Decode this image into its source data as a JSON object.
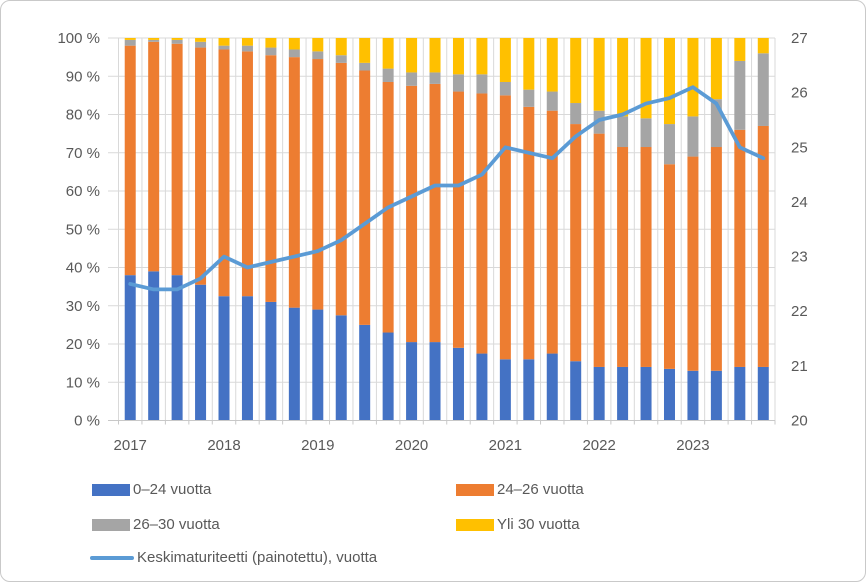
{
  "chart_data": {
    "type": "bar",
    "subtype": "100%-stacked-columns-with-line",
    "title": "",
    "x_categories": [
      "2017Q1",
      "2017Q2",
      "2017Q3",
      "2017Q4",
      "2018Q1",
      "2018Q2",
      "2018Q3",
      "2018Q4",
      "2019Q1",
      "2019Q2",
      "2019Q3",
      "2019Q4",
      "2020Q1",
      "2020Q2",
      "2020Q3",
      "2020Q4",
      "2021Q1",
      "2021Q2",
      "2021Q3",
      "2021Q4",
      "2022Q1",
      "2022Q2",
      "2022Q3",
      "2022Q4",
      "2023Q1",
      "2023Q2",
      "2023Q3",
      "2023Q4"
    ],
    "x_tick_labels": [
      "2017",
      "2018",
      "2019",
      "2020",
      "2021",
      "2022",
      "2023"
    ],
    "series": [
      {
        "name": "0–24 vuotta",
        "color": "#4472C4",
        "values": [
          38,
          39,
          38,
          35.5,
          32.5,
          32.5,
          31,
          29.5,
          29,
          27.5,
          25,
          23,
          20.5,
          20.5,
          19,
          17.5,
          16,
          16,
          17.5,
          15.5,
          14,
          14,
          14,
          13.5,
          13,
          13,
          14,
          14
        ]
      },
      {
        "name": "24–26 vuotta",
        "color": "#ED7D31",
        "values": [
          60,
          60,
          60.5,
          62,
          64.5,
          64,
          64.5,
          65.5,
          65.5,
          66,
          66.5,
          65.5,
          67,
          67.5,
          67,
          68,
          69,
          66,
          63.5,
          62,
          61,
          57.5,
          57.5,
          53.5,
          56,
          58.5,
          62,
          63
        ]
      },
      {
        "name": "26–30 vuotta",
        "color": "#A5A5A5",
        "values": [
          1.5,
          0.5,
          1,
          1.5,
          1,
          1.5,
          2,
          2,
          2,
          2,
          2,
          3.5,
          3.5,
          3,
          4.5,
          5,
          3.5,
          4.5,
          5,
          5.5,
          6,
          8,
          7.5,
          10.5,
          10.5,
          12.5,
          18,
          19
        ]
      },
      {
        "name": "Yli 30 vuotta",
        "color": "#FFC000",
        "values": [
          0.5,
          0.5,
          0.5,
          1,
          2,
          2,
          2.5,
          3,
          3.5,
          4.5,
          6.5,
          8,
          9,
          9,
          9.5,
          9.5,
          11.5,
          13.5,
          14,
          17,
          19,
          20.5,
          21,
          22.5,
          20.5,
          16,
          6,
          4
        ]
      }
    ],
    "line_series": {
      "name": "Keskimaturiteetti (painotettu), vuotta",
      "color": "#5B9BD5",
      "axis": "right",
      "values": [
        22.5,
        22.4,
        22.4,
        22.6,
        23.0,
        22.8,
        22.9,
        23.0,
        23.1,
        23.3,
        23.6,
        23.9,
        24.1,
        24.3,
        24.3,
        24.5,
        25.0,
        24.9,
        24.8,
        25.2,
        25.5,
        25.6,
        25.8,
        25.9,
        26.1,
        25.8,
        25.0,
        24.8
      ]
    },
    "left_axis": {
      "min": 0,
      "max": 100,
      "step": 10,
      "tick_labels": [
        "0 %",
        "10 %",
        "20 %",
        "30 %",
        "40 %",
        "50 %",
        "60 %",
        "70 %",
        "80 %",
        "90 %",
        "100 %"
      ]
    },
    "right_axis": {
      "min": 20,
      "max": 27,
      "step": 1,
      "tick_labels": [
        "20",
        "21",
        "22",
        "23",
        "24",
        "25",
        "26",
        "27"
      ]
    },
    "gridlines": {
      "horizontal": true,
      "vertical": true,
      "color": "#D9D9D9"
    },
    "axis_color": "#C8C8C8",
    "text_color": "#595959",
    "background": "#FFFFFF",
    "legend_position": "bottom"
  }
}
